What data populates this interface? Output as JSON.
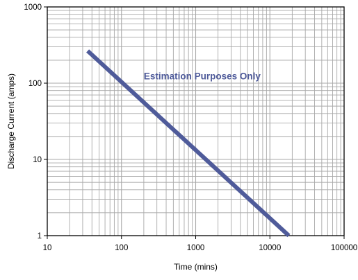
{
  "chart_data": {
    "type": "line",
    "title": "",
    "xlabel": "Time (mins)",
    "ylabel": "Discharge Current (amps)",
    "x_scale": "log",
    "y_scale": "log",
    "xlim": [
      10,
      100000
    ],
    "ylim": [
      1,
      1000
    ],
    "x_ticks": [
      10,
      100,
      1000,
      10000,
      100000
    ],
    "x_tick_labels": [
      "10",
      "100",
      "1000",
      "10000",
      "100000"
    ],
    "y_ticks": [
      1,
      10,
      100,
      1000
    ],
    "y_tick_labels": [
      "1",
      "10",
      "100",
      "1000"
    ],
    "grid": true,
    "legend": "none",
    "series": [
      {
        "color": "#4f5b9a",
        "x": [
          35,
          18000
        ],
        "y": [
          265,
          1
        ]
      }
    ],
    "annotations": [
      {
        "text": "Estimation Purposes Only",
        "x": 200,
        "y": 125,
        "color": "#4f5b9a"
      }
    ],
    "grid_color": "#a8a8a8",
    "axis_color": "#000000"
  }
}
